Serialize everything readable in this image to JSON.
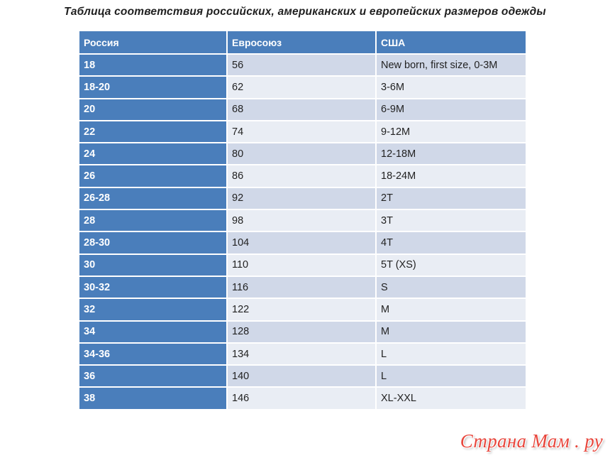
{
  "title": "Таблица соответствия российских, американских и европейских размеров одежды",
  "table": {
    "headers": [
      "Россия",
      "Евросоюз",
      "США"
    ],
    "rows": [
      [
        "18",
        "56",
        "New born, first size, 0-3M"
      ],
      [
        "18-20",
        "62",
        "3-6M"
      ],
      [
        "20",
        "68",
        "6-9M"
      ],
      [
        "22",
        "74",
        "9-12M"
      ],
      [
        "24",
        "80",
        "12-18M"
      ],
      [
        "26",
        "86",
        "18-24M"
      ],
      [
        "26-28",
        "92",
        "2T"
      ],
      [
        "28",
        "98",
        "3T"
      ],
      [
        "28-30",
        "104",
        "4T"
      ],
      [
        "30",
        "110",
        "5T (XS)"
      ],
      [
        "30-32",
        "116",
        "S"
      ],
      [
        "32",
        "122",
        "M"
      ],
      [
        "34",
        "128",
        "M"
      ],
      [
        "34-36",
        "134",
        "L"
      ],
      [
        "36",
        "140",
        "L"
      ],
      [
        "38",
        "146",
        "XL-XXL"
      ]
    ]
  },
  "watermark": "Страна Мам . ру",
  "colors": {
    "header_bg": "#4a7ebb",
    "row_odd": "#d0d8e8",
    "row_even": "#e9edf4",
    "watermark": "#e8463c"
  }
}
